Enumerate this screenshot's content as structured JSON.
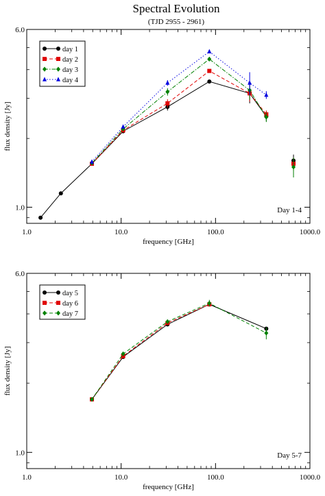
{
  "title": "Spectral Evolution",
  "subtitle": "(TJD 2955 - 2961)",
  "chart_data": [
    {
      "type": "line",
      "panel_label": "Day 1-4",
      "xlabel": "frequency [GHz]",
      "ylabel": "flux density [Jy]",
      "x_scale": "log",
      "y_scale": "log",
      "xlim": [
        1.0,
        1000.0
      ],
      "ylim": [
        0.85,
        6.0
      ],
      "x_tick_labels": [
        "1.0",
        "10.0",
        "100.0",
        "1000.0"
      ],
      "y_tick_labels": [
        "1.0",
        "6.0"
      ],
      "legend_position": "top-left",
      "series": [
        {
          "name": "day 1",
          "color": "#000000",
          "marker": "circle",
          "dash": "solid",
          "points": [
            [
              1.4,
              0.9
            ],
            [
              2.3,
              1.15
            ],
            [
              4.9,
              1.55
            ],
            [
              10.5,
              2.15
            ],
            [
              31,
              2.75
            ],
            [
              86,
              3.55
            ],
            [
              230,
              3.15
            ],
            [
              345,
              2.5
            ],
            [
              670,
              1.6
            ]
          ],
          "errors": [
            0,
            0,
            0,
            0,
            0.1,
            0,
            0.3,
            0.12,
            0.1
          ]
        },
        {
          "name": "day 2",
          "color": "#e00000",
          "marker": "square",
          "dash": "dash",
          "points": [
            [
              4.9,
              1.55
            ],
            [
              10.5,
              2.17
            ],
            [
              31,
              2.85
            ],
            [
              86,
              3.95
            ],
            [
              230,
              3.15
            ],
            [
              345,
              2.55
            ],
            [
              670,
              1.55
            ]
          ],
          "errors": [
            0,
            0,
            0.12,
            0,
            0.25,
            0.1,
            0.1
          ]
        },
        {
          "name": "day 3",
          "color": "#008000",
          "marker": "diamond",
          "dash": "dashdot",
          "points": [
            [
              4.9,
              1.56
            ],
            [
              10.5,
              2.2
            ],
            [
              31,
              3.2
            ],
            [
              86,
              4.45
            ],
            [
              230,
              3.25
            ],
            [
              345,
              2.48
            ],
            [
              670,
              1.5
            ]
          ],
          "errors": [
            0,
            0,
            0.12,
            0,
            0.3,
            0.12,
            0.15
          ]
        },
        {
          "name": "day 4",
          "color": "#0000e0",
          "marker": "triangle",
          "dash": "dot",
          "points": [
            [
              4.9,
              1.58
            ],
            [
              10.5,
              2.25
            ],
            [
              31,
              3.5
            ],
            [
              86,
              4.8
            ],
            [
              230,
              3.5
            ],
            [
              345,
              3.1
            ]
          ],
          "errors": [
            0,
            0,
            0.1,
            0,
            0.4,
            0.12
          ]
        }
      ]
    },
    {
      "type": "line",
      "panel_label": "Day 5-7",
      "xlabel": "frequency [GHz]",
      "ylabel": "flux density [Jy]",
      "x_scale": "log",
      "y_scale": "log",
      "xlim": [
        1.0,
        1000.0
      ],
      "ylim": [
        0.85,
        6.0
      ],
      "x_tick_labels": [
        "1.0",
        "10.0",
        "100.0",
        "1000.0"
      ],
      "y_tick_labels": [
        "1.0",
        "6.0"
      ],
      "legend_position": "top-left",
      "series": [
        {
          "name": "day 5",
          "color": "#000000",
          "marker": "circle",
          "dash": "solid",
          "points": [
            [
              4.9,
              1.7
            ],
            [
              10.5,
              2.6
            ],
            [
              31,
              3.6
            ],
            [
              86,
              4.4
            ],
            [
              345,
              3.45
            ]
          ],
          "errors": [
            0,
            0,
            0,
            0,
            0
          ]
        },
        {
          "name": "day 6",
          "color": "#e00000",
          "marker": "square",
          "dash": "dash",
          "points": [
            [
              4.9,
              1.7
            ],
            [
              10.5,
              2.62
            ],
            [
              31,
              3.65
            ],
            [
              86,
              4.4
            ]
          ],
          "errors": [
            0,
            0,
            0,
            0
          ]
        },
        {
          "name": "day 7",
          "color": "#008000",
          "marker": "diamond",
          "dash": "dash",
          "points": [
            [
              4.9,
              1.7
            ],
            [
              10.5,
              2.68
            ],
            [
              31,
              3.7
            ],
            [
              86,
              4.45
            ],
            [
              345,
              3.3
            ]
          ],
          "errors": [
            0,
            0,
            0,
            0.15,
            0.2
          ]
        }
      ]
    }
  ]
}
